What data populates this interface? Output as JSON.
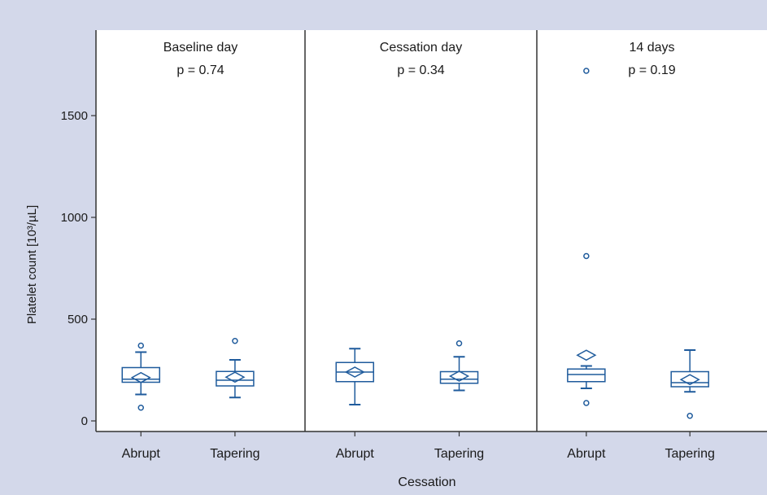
{
  "chart_data": {
    "type": "box",
    "ylabel": "Platelet count [10³/µL]",
    "xlabel": "Cessation",
    "ylim": [
      -40,
      1900
    ],
    "yticks": [
      0,
      500,
      1000,
      1500
    ],
    "grid": false,
    "colors": {
      "box": "#1f5b9c",
      "frame": "#333333",
      "background": "#d3d8ea"
    },
    "panels": [
      {
        "title": "Baseline day",
        "p_value": "p = 0.74",
        "groups": [
          {
            "name": "Abrupt",
            "q1": 190,
            "median": 205,
            "q3": 262,
            "mean": 213,
            "whisker_low": 130,
            "whisker_high": 338,
            "outliers": [
              370,
              65
            ]
          },
          {
            "name": "Tapering",
            "q1": 172,
            "median": 200,
            "q3": 243,
            "mean": 215,
            "whisker_low": 115,
            "whisker_high": 300,
            "outliers": [
              393
            ]
          }
        ]
      },
      {
        "title": "Cessation day",
        "p_value": "p = 0.34",
        "groups": [
          {
            "name": "Abrupt",
            "q1": 193,
            "median": 240,
            "q3": 287,
            "mean": 240,
            "whisker_low": 80,
            "whisker_high": 355,
            "outliers": []
          },
          {
            "name": "Tapering",
            "q1": 185,
            "median": 205,
            "q3": 242,
            "mean": 220,
            "whisker_low": 150,
            "whisker_high": 315,
            "outliers": [
              381
            ]
          }
        ]
      },
      {
        "title": "14 days",
        "p_value": "p = 0.19",
        "groups": [
          {
            "name": "Abrupt",
            "q1": 193,
            "median": 228,
            "q3": 255,
            "mean": 323,
            "whisker_low": 160,
            "whisker_high": 270,
            "outliers": [
              1720,
              810,
              88
            ]
          },
          {
            "name": "Tapering",
            "q1": 168,
            "median": 188,
            "q3": 242,
            "mean": 203,
            "whisker_low": 143,
            "whisker_high": 348,
            "outliers": [
              25
            ]
          }
        ]
      }
    ]
  }
}
